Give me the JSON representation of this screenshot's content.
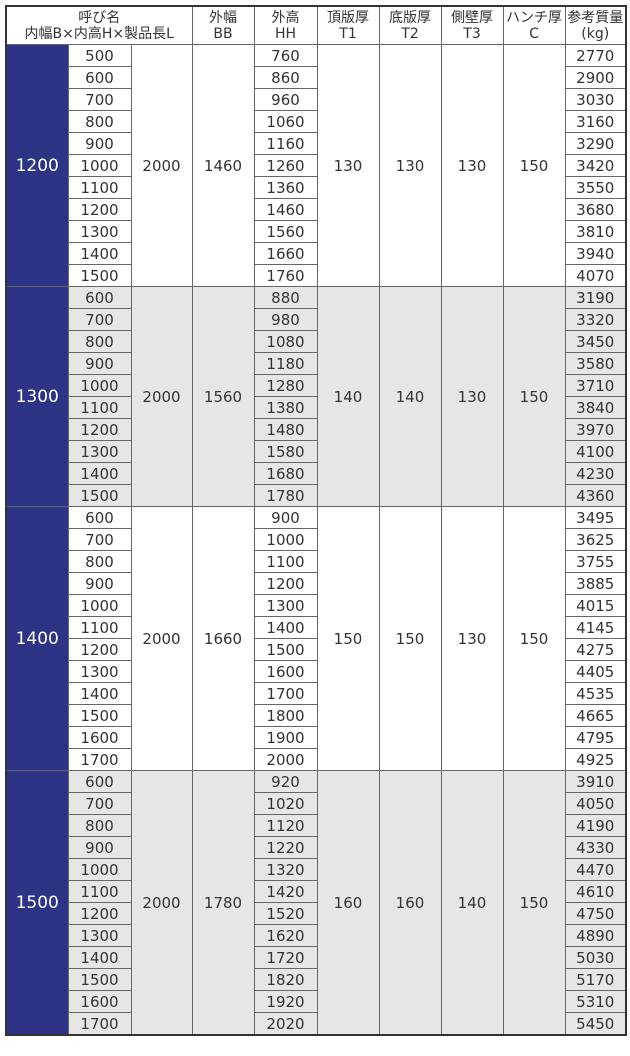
{
  "header": {
    "name_line1": "呼び名",
    "name_line2": "内幅B×内高H×製品長L",
    "columns": [
      {
        "line1": "外幅",
        "line2": "BB"
      },
      {
        "line1": "外高",
        "line2": "HH"
      },
      {
        "line1": "頂版厚",
        "line2": "T1"
      },
      {
        "line1": "底版厚",
        "line2": "T2"
      },
      {
        "line1": "側壁厚",
        "line2": "T3"
      },
      {
        "line1": "ハンチ厚",
        "line2": "C"
      },
      {
        "line1": "参考質量",
        "line2": "(kg)"
      }
    ]
  },
  "groups": [
    {
      "B": 1200,
      "L": 2000,
      "BB": 1460,
      "T1": 130,
      "T2": 130,
      "T3": 130,
      "C": 150,
      "rows": [
        {
          "H": 500,
          "HH": 760,
          "kg": 2770
        },
        {
          "H": 600,
          "HH": 860,
          "kg": 2900
        },
        {
          "H": 700,
          "HH": 960,
          "kg": 3030
        },
        {
          "H": 800,
          "HH": 1060,
          "kg": 3160
        },
        {
          "H": 900,
          "HH": 1160,
          "kg": 3290
        },
        {
          "H": 1000,
          "HH": 1260,
          "kg": 3420
        },
        {
          "H": 1100,
          "HH": 1360,
          "kg": 3550
        },
        {
          "H": 1200,
          "HH": 1460,
          "kg": 3680
        },
        {
          "H": 1300,
          "HH": 1560,
          "kg": 3810
        },
        {
          "H": 1400,
          "HH": 1660,
          "kg": 3940
        },
        {
          "H": 1500,
          "HH": 1760,
          "kg": 4070
        }
      ]
    },
    {
      "B": 1300,
      "L": 2000,
      "BB": 1560,
      "T1": 140,
      "T2": 140,
      "T3": 130,
      "C": 150,
      "rows": [
        {
          "H": 600,
          "HH": 880,
          "kg": 3190
        },
        {
          "H": 700,
          "HH": 980,
          "kg": 3320
        },
        {
          "H": 800,
          "HH": 1080,
          "kg": 3450
        },
        {
          "H": 900,
          "HH": 1180,
          "kg": 3580
        },
        {
          "H": 1000,
          "HH": 1280,
          "kg": 3710
        },
        {
          "H": 1100,
          "HH": 1380,
          "kg": 3840
        },
        {
          "H": 1200,
          "HH": 1480,
          "kg": 3970
        },
        {
          "H": 1300,
          "HH": 1580,
          "kg": 4100
        },
        {
          "H": 1400,
          "HH": 1680,
          "kg": 4230
        },
        {
          "H": 1500,
          "HH": 1780,
          "kg": 4360
        }
      ]
    },
    {
      "B": 1400,
      "L": 2000,
      "BB": 1660,
      "T1": 150,
      "T2": 150,
      "T3": 130,
      "C": 150,
      "rows": [
        {
          "H": 600,
          "HH": 900,
          "kg": 3495
        },
        {
          "H": 700,
          "HH": 1000,
          "kg": 3625
        },
        {
          "H": 800,
          "HH": 1100,
          "kg": 3755
        },
        {
          "H": 900,
          "HH": 1200,
          "kg": 3885
        },
        {
          "H": 1000,
          "HH": 1300,
          "kg": 4015
        },
        {
          "H": 1100,
          "HH": 1400,
          "kg": 4145
        },
        {
          "H": 1200,
          "HH": 1500,
          "kg": 4275
        },
        {
          "H": 1300,
          "HH": 1600,
          "kg": 4405
        },
        {
          "H": 1400,
          "HH": 1700,
          "kg": 4535
        },
        {
          "H": 1500,
          "HH": 1800,
          "kg": 4665
        },
        {
          "H": 1600,
          "HH": 1900,
          "kg": 4795
        },
        {
          "H": 1700,
          "HH": 2000,
          "kg": 4925
        }
      ]
    },
    {
      "B": 1500,
      "L": 2000,
      "BB": 1780,
      "T1": 160,
      "T2": 160,
      "T3": 140,
      "C": 150,
      "rows": [
        {
          "H": 600,
          "HH": 920,
          "kg": 3910
        },
        {
          "H": 700,
          "HH": 1020,
          "kg": 4050
        },
        {
          "H": 800,
          "HH": 1120,
          "kg": 4190
        },
        {
          "H": 900,
          "HH": 1220,
          "kg": 4330
        },
        {
          "H": 1000,
          "HH": 1320,
          "kg": 4470
        },
        {
          "H": 1100,
          "HH": 1420,
          "kg": 4610
        },
        {
          "H": 1200,
          "HH": 1520,
          "kg": 4750
        },
        {
          "H": 1300,
          "HH": 1620,
          "kg": 4890
        },
        {
          "H": 1400,
          "HH": 1720,
          "kg": 5030
        },
        {
          "H": 1500,
          "HH": 1820,
          "kg": 5170
        },
        {
          "H": 1600,
          "HH": 1920,
          "kg": 5310
        },
        {
          "H": 1700,
          "HH": 2020,
          "kg": 5450
        }
      ]
    }
  ]
}
